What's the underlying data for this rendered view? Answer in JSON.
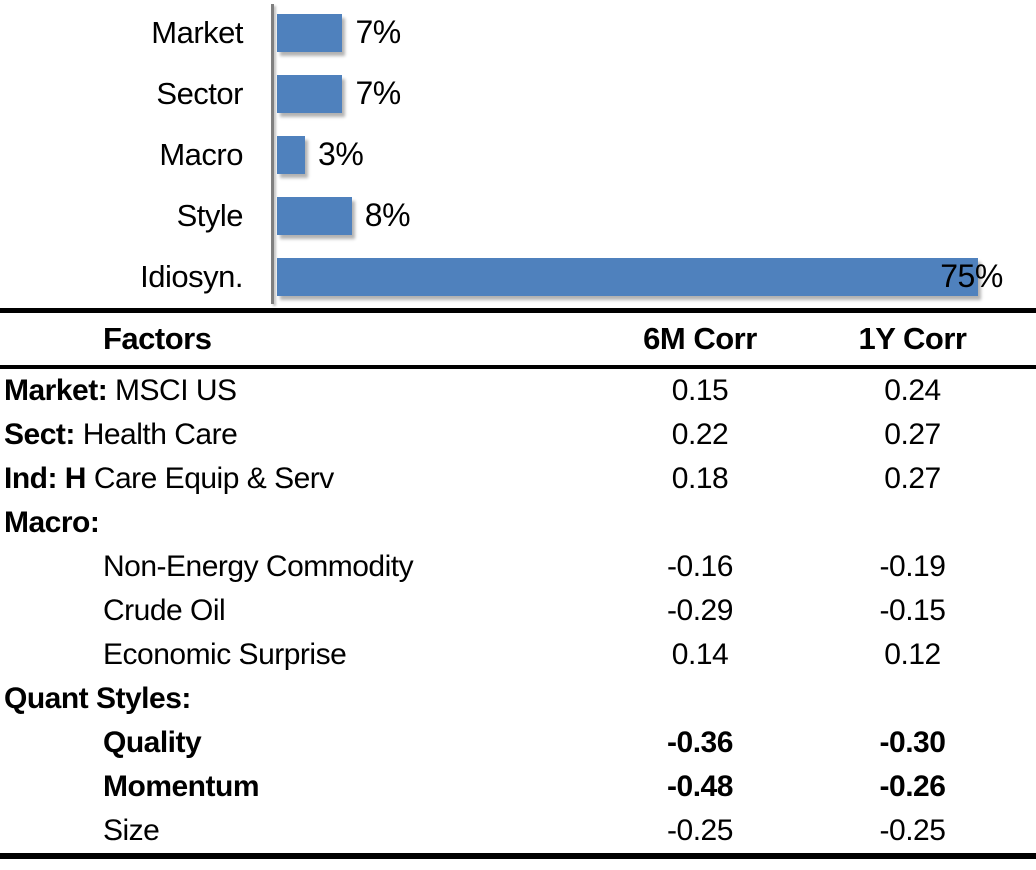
{
  "chart_data": {
    "type": "bar",
    "orientation": "horizontal",
    "title": "",
    "xlabel": "",
    "ylabel": "",
    "categories": [
      "Market",
      "Sector",
      "Macro",
      "Style",
      "Idiosyn."
    ],
    "values": [
      7,
      7,
      3,
      8,
      75
    ],
    "labels": [
      "7%",
      "7%",
      "3%",
      "8%",
      "75%"
    ],
    "xlim": [
      0,
      80
    ],
    "grid": false,
    "legend": false,
    "bar_color": "#4F81BD",
    "axis_color": "#7f7f7f",
    "value_label_color": "#000000"
  },
  "table": {
    "headers": {
      "factors": "Factors",
      "c6m": "6M Corr",
      "c1y": "1Y Corr"
    },
    "rows": [
      {
        "bold": "Market:",
        "rest": " MSCI US",
        "c6m": "0.15",
        "c1y": "0.24"
      },
      {
        "bold": "Sect:",
        "rest": " Health Care",
        "c6m": "0.22",
        "c1y": "0.27"
      },
      {
        "bold": "Ind: H",
        "rest": " Care Equip & Serv",
        "c6m": "0.18",
        "c1y": "0.27"
      },
      {
        "bold": "Macro:",
        "rest": "",
        "c6m": "",
        "c1y": ""
      },
      {
        "bold": "",
        "rest": "Non-Energy Commodity",
        "c6m": "-0.16",
        "c1y": "-0.19"
      },
      {
        "bold": "",
        "rest": "Crude Oil",
        "c6m": "-0.29",
        "c1y": "-0.15"
      },
      {
        "bold": "",
        "rest": "Economic Surprise",
        "c6m": "0.14",
        "c1y": "0.12"
      },
      {
        "bold": "Quant Styles:",
        "rest": "",
        "c6m": "",
        "c1y": ""
      },
      {
        "bold": "",
        "rest": "Quality",
        "c6m": "-0.36",
        "c1y": "-0.30"
      },
      {
        "bold": "",
        "rest": "Momentum",
        "c6m": "-0.48",
        "c1y": "-0.26"
      },
      {
        "bold": "",
        "rest": "Size",
        "c6m": "-0.25",
        "c1y": "-0.25"
      }
    ]
  }
}
